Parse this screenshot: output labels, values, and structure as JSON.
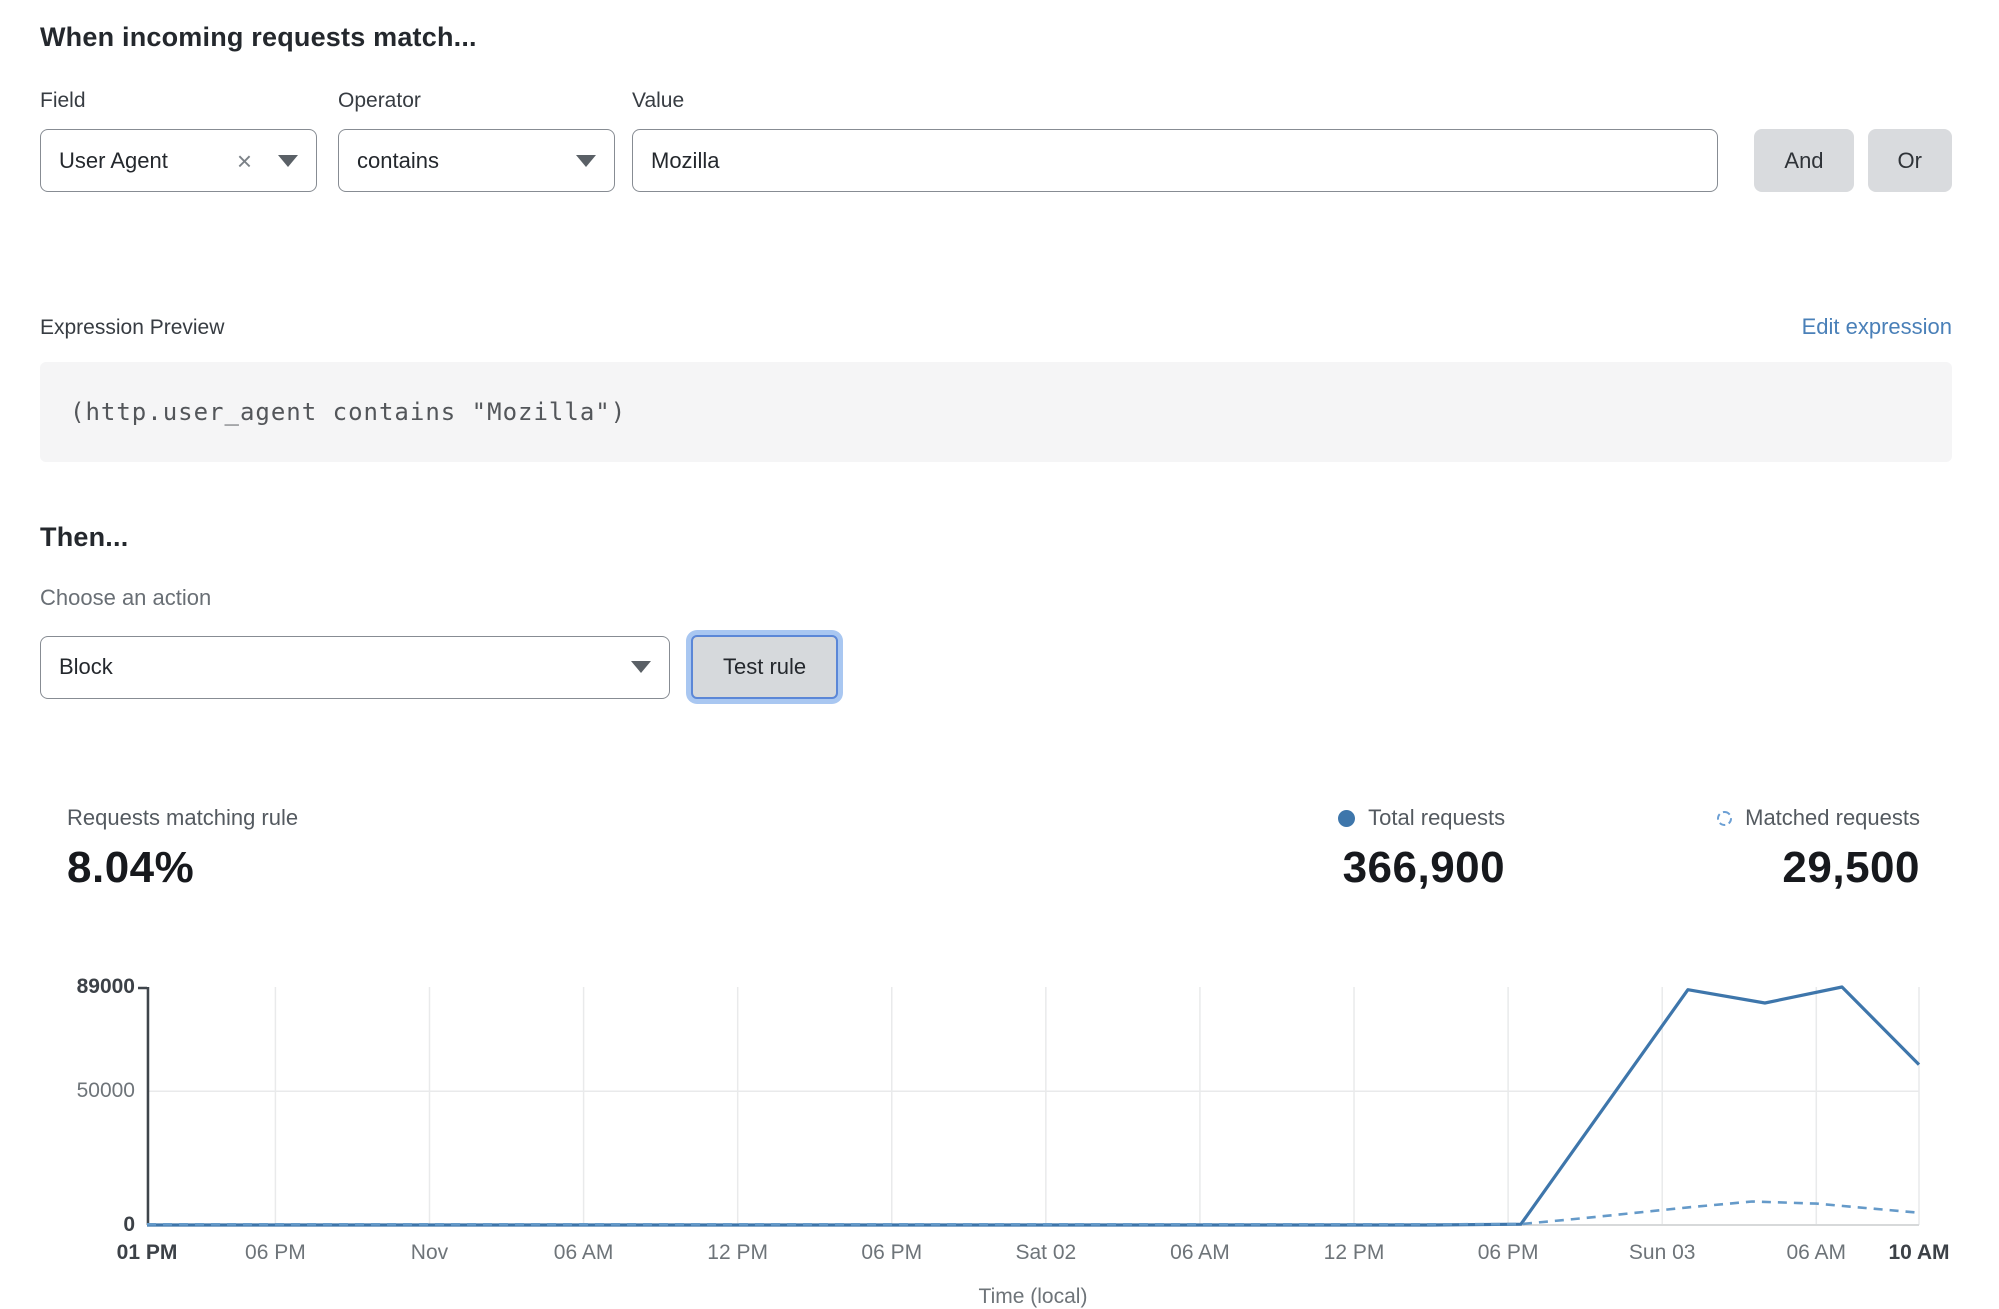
{
  "rule_builder": {
    "heading": "When incoming requests match...",
    "field": {
      "label": "Field",
      "value": "User Agent"
    },
    "operator": {
      "label": "Operator",
      "value": "contains"
    },
    "value": {
      "label": "Value",
      "value": "Mozilla"
    },
    "and_label": "And",
    "or_label": "Or"
  },
  "expression": {
    "label": "Expression Preview",
    "edit_link": "Edit expression",
    "code": "(http.user_agent contains \"Mozilla\")"
  },
  "action": {
    "heading": "Then...",
    "choose_label": "Choose an action",
    "value": "Block",
    "test_button": "Test rule"
  },
  "stats": {
    "match_label": "Requests matching rule",
    "match_value": "8.04%",
    "total_label": "Total requests",
    "total_value": "366,900",
    "matched_label": "Matched requests",
    "matched_value": "29,500"
  },
  "colors": {
    "accent_blue": "#3e76ab",
    "dashed_blue": "#659ac9",
    "link_blue": "#4a80b8",
    "grid": "#e9eaeb",
    "baseline": "#d7d9da",
    "axis": "#3f454b"
  },
  "chart_data": {
    "type": "line",
    "xlabel": "Time (local)",
    "x_unit": "hours from Fri 01 PM",
    "xlim": [
      0,
      69
    ],
    "ylim": [
      0,
      89000
    ],
    "grid": {
      "vertical": true,
      "horizontal_at": [
        50000
      ]
    },
    "legend_position": "top-right",
    "y_ticks": [
      {
        "value": 89000,
        "label": "89000",
        "bold": true
      },
      {
        "value": 50000,
        "label": "50000",
        "bold": false
      },
      {
        "value": 0,
        "label": "0",
        "bold": true
      }
    ],
    "x_ticks": [
      {
        "h": 0,
        "label": "01 PM",
        "bold": true
      },
      {
        "h": 5,
        "label": "06 PM",
        "bold": false
      },
      {
        "h": 11,
        "label": "Nov",
        "bold": false
      },
      {
        "h": 17,
        "label": "06 AM",
        "bold": false
      },
      {
        "h": 23,
        "label": "12 PM",
        "bold": false
      },
      {
        "h": 29,
        "label": "06 PM",
        "bold": false
      },
      {
        "h": 35,
        "label": "Sat 02",
        "bold": false
      },
      {
        "h": 41,
        "label": "06 AM",
        "bold": false
      },
      {
        "h": 47,
        "label": "12 PM",
        "bold": false
      },
      {
        "h": 53,
        "label": "06 PM",
        "bold": false
      },
      {
        "h": 59,
        "label": "Sun 03",
        "bold": false
      },
      {
        "h": 65,
        "label": "06 AM",
        "bold": false
      },
      {
        "h": 69,
        "label": "10 AM",
        "bold": true
      }
    ],
    "series": [
      {
        "name": "Total requests",
        "style": "solid",
        "color": "#3e76ab",
        "points": [
          [
            0,
            0
          ],
          [
            10,
            0
          ],
          [
            20,
            0
          ],
          [
            30,
            0
          ],
          [
            40,
            0
          ],
          [
            50,
            0
          ],
          [
            53.5,
            300
          ],
          [
            60,
            88000
          ],
          [
            63,
            83000
          ],
          [
            66,
            89000
          ],
          [
            69,
            60000
          ]
        ]
      },
      {
        "name": "Matched requests",
        "style": "dashed",
        "color": "#659ac9",
        "points": [
          [
            0,
            250
          ],
          [
            10,
            250
          ],
          [
            20,
            250
          ],
          [
            30,
            250
          ],
          [
            40,
            250
          ],
          [
            50,
            250
          ],
          [
            53.5,
            350
          ],
          [
            56,
            2600
          ],
          [
            58,
            4600
          ],
          [
            60,
            6600
          ],
          [
            62.5,
            8800
          ],
          [
            65,
            8000
          ],
          [
            67,
            6300
          ],
          [
            69,
            4600
          ]
        ]
      }
    ]
  }
}
